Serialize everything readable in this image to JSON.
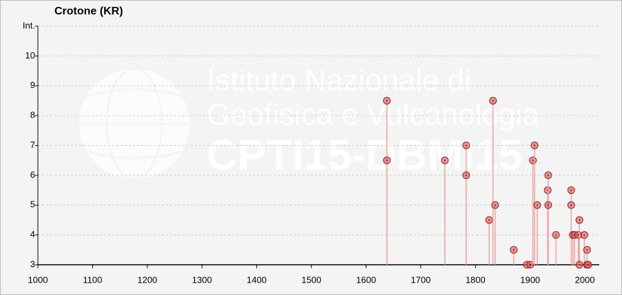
{
  "chart_data": {
    "type": "scatter",
    "title": "Crotone (KR)",
    "watermark": [
      "Istituto Nazionale di",
      "Geofisica e Vulcanologia",
      "CPTI15-DBMI15"
    ],
    "x": [
      1638,
      1638,
      1744,
      1783,
      1783,
      1825,
      1832,
      1836,
      1870,
      1894,
      1900,
      1905,
      1908,
      1913,
      1932,
      1933,
      1933,
      1947,
      1975,
      1975,
      1978,
      1981,
      1988,
      1990,
      1990,
      1999,
      2004,
      2004,
      2006
    ],
    "values": [
      8.5,
      6.5,
      6.5,
      7,
      6,
      4.5,
      8.5,
      5,
      3.5,
      3,
      3,
      6.5,
      7,
      5,
      5.5,
      6,
      5,
      4,
      5.5,
      5,
      4,
      4,
      4,
      4.5,
      3,
      4,
      3.5,
      3,
      3
    ],
    "color": "#e85a5a",
    "stem_color": "#f2a0a0",
    "xlim": [
      1000,
      2020
    ],
    "xticks": [
      1000,
      1100,
      1200,
      1300,
      1400,
      1500,
      1600,
      1700,
      1800,
      1900,
      2000
    ],
    "ylim": [
      3,
      11
    ],
    "yticks": [
      3,
      4,
      5,
      6,
      7,
      8,
      9,
      10,
      {
        "value": 11,
        "label": "Int."
      }
    ],
    "grid": true
  }
}
